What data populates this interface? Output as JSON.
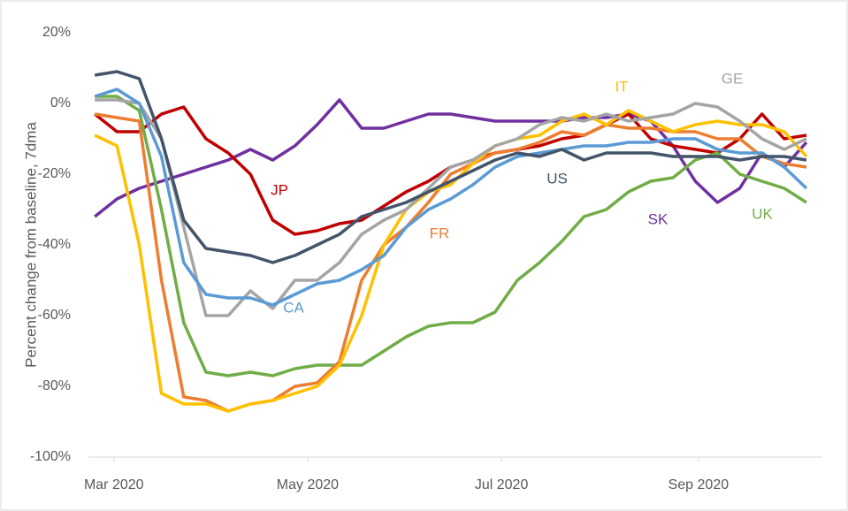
{
  "chart_data": {
    "type": "line",
    "y_label": "Percent change from baseline, 7dma",
    "x": [
      -6,
      1,
      8,
      15,
      22,
      29,
      36,
      43,
      50,
      57,
      64,
      71,
      78,
      85,
      92,
      99,
      106,
      113,
      120,
      127,
      134,
      141,
      148,
      155,
      162,
      169,
      176,
      183,
      190,
      197,
      204,
      211,
      218
    ],
    "xlim": [
      -8,
      223
    ],
    "xticks": [
      {
        "value": 0,
        "label": "Mar 2020"
      },
      {
        "value": 61,
        "label": "May 2020"
      },
      {
        "value": 122,
        "label": "Jul 2020"
      },
      {
        "value": 184,
        "label": "Sep 2020"
      }
    ],
    "ylim": [
      -100,
      20
    ],
    "yticks": [
      {
        "value": -100,
        "label": "-100%"
      },
      {
        "value": -80,
        "label": "-80%"
      },
      {
        "value": -60,
        "label": "-60%"
      },
      {
        "value": -40,
        "label": "-40%"
      },
      {
        "value": -20,
        "label": "-20%"
      },
      {
        "value": 0,
        "label": "0%"
      },
      {
        "value": 20,
        "label": "20%"
      }
    ],
    "series": [
      {
        "name": "SK",
        "color": "#7030a0",
        "values": [
          -32,
          -27,
          -24,
          -22,
          -20,
          -18,
          -16,
          -13,
          -16,
          -12,
          -6,
          1,
          -7,
          -7,
          -5,
          -3,
          -3,
          -4,
          -5,
          -5,
          -5,
          -5,
          -4,
          -4,
          -3,
          -5,
          -12,
          -22,
          -28,
          -24,
          -14,
          -18,
          -11
        ]
      },
      {
        "name": "JP",
        "color": "#c00000",
        "values": [
          -3,
          -8,
          -8,
          -3,
          -1,
          -10,
          -14,
          -20,
          -33,
          -37,
          -36,
          -34,
          -33,
          -29,
          -25,
          -22,
          -18,
          -16,
          -14,
          -13,
          -12,
          -10,
          -9,
          -6,
          -3,
          -10,
          -12,
          -13,
          -14,
          -10,
          -3,
          -10,
          -9
        ]
      },
      {
        "name": "UK",
        "color": "#70ad47",
        "values": [
          2,
          2,
          -2,
          -30,
          -62,
          -76,
          -77,
          -76,
          -77,
          -75,
          -74,
          -74,
          -74,
          -70,
          -66,
          -63,
          -62,
          -62,
          -59,
          -50,
          -45,
          -39,
          -32,
          -30,
          -25,
          -22,
          -21,
          -16,
          -14,
          -20,
          -22,
          -24,
          -28
        ]
      },
      {
        "name": "FR",
        "color": "#ed7d31",
        "values": [
          -3,
          -4,
          -5,
          -50,
          -83,
          -84,
          -87,
          -85,
          -84,
          -80,
          -79,
          -73,
          -50,
          -40,
          -35,
          -28,
          -20,
          -17,
          -14,
          -13,
          -11,
          -8,
          -9,
          -6,
          -7,
          -7,
          -8,
          -8,
          -10,
          -10,
          -15,
          -17,
          -18
        ]
      },
      {
        "name": "IT",
        "color": "#ffc000",
        "values": [
          -9,
          -12,
          -40,
          -82,
          -85,
          -85,
          -87,
          -85,
          -84,
          -82,
          -80,
          -74,
          -60,
          -40,
          -30,
          -25,
          -23,
          -17,
          -12,
          -10,
          -9,
          -5,
          -3,
          -6,
          -2,
          -5,
          -8,
          -6,
          -5,
          -6,
          -6,
          -8,
          -15
        ]
      },
      {
        "name": "GE",
        "color": "#a5a5a5",
        "values": [
          1,
          1,
          0,
          -10,
          -35,
          -60,
          -60,
          -53,
          -58,
          -50,
          -50,
          -45,
          -37,
          -33,
          -30,
          -24,
          -18,
          -16,
          -12,
          -10,
          -6,
          -4,
          -5,
          -3,
          -5,
          -4,
          -3,
          0,
          -1,
          -5,
          -10,
          -13,
          -10
        ]
      },
      {
        "name": "CA",
        "color": "#5b9bd5",
        "values": [
          2,
          4,
          0,
          -15,
          -45,
          -54,
          -55,
          -55,
          -57,
          -54,
          -51,
          -50,
          -47,
          -43,
          -35,
          -30,
          -27,
          -23,
          -18,
          -15,
          -14,
          -13,
          -12,
          -12,
          -11,
          -11,
          -10,
          -10,
          -13,
          -14,
          -14,
          -18,
          -24
        ]
      },
      {
        "name": "US",
        "color": "#44546a",
        "values": [
          8,
          9,
          7,
          -10,
          -33,
          -41,
          -42,
          -43,
          -45,
          -43,
          -40,
          -37,
          -32,
          -30,
          -28,
          -25,
          -22,
          -19,
          -16,
          -14,
          -15,
          -13,
          -16,
          -14,
          -14,
          -14,
          -15,
          -15,
          -15,
          -16,
          -15,
          -15,
          -16
        ]
      }
    ]
  }
}
